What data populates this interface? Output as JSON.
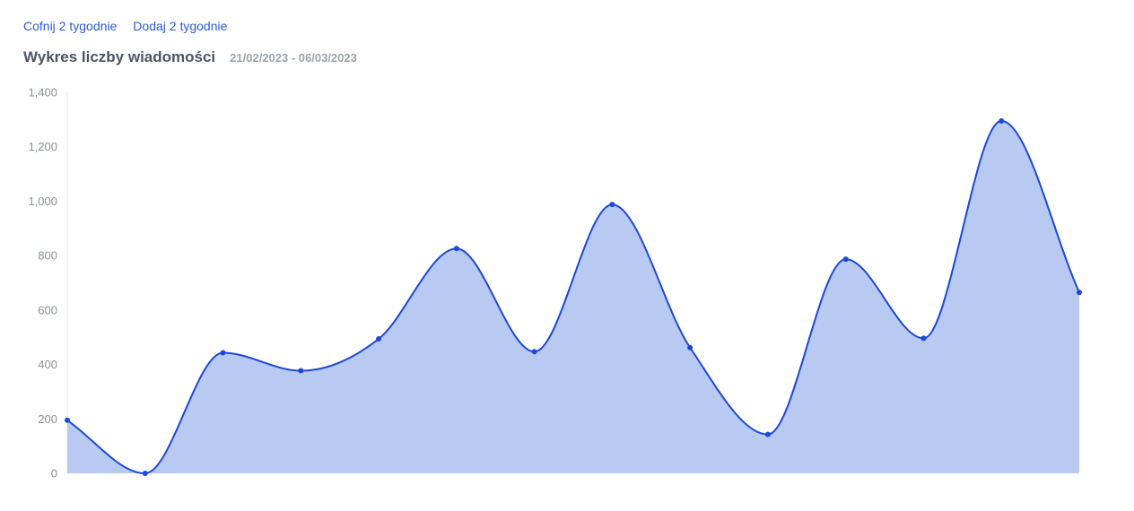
{
  "nav": {
    "back_label": "Cofnij 2 tygodnie",
    "forward_label": "Dodaj 2 tygodnie"
  },
  "header": {
    "title": "Wykres liczby wiadomości",
    "date_range": "21/02/2023 - 06/03/2023"
  },
  "colors": {
    "line": "#1d47d6",
    "fill": "#b8c9f2",
    "axis": "#e3e5ea",
    "link": "#2b59d9"
  },
  "chart_data": {
    "type": "area",
    "title": "Wykres liczby wiadomości",
    "xlabel": "",
    "ylabel": "",
    "ylim": [
      0,
      1400
    ],
    "yticks": [
      0,
      200,
      400,
      600,
      800,
      1000,
      1200,
      1400
    ],
    "ytick_labels": [
      "0",
      "200",
      "400",
      "600",
      "800",
      "1,000",
      "1,200",
      "1,400"
    ],
    "grid": false,
    "series": [
      {
        "values": [
          195,
          0,
          443,
          377,
          494,
          826,
          447,
          988,
          462,
          143,
          787,
          496,
          1295,
          665
        ]
      }
    ]
  }
}
